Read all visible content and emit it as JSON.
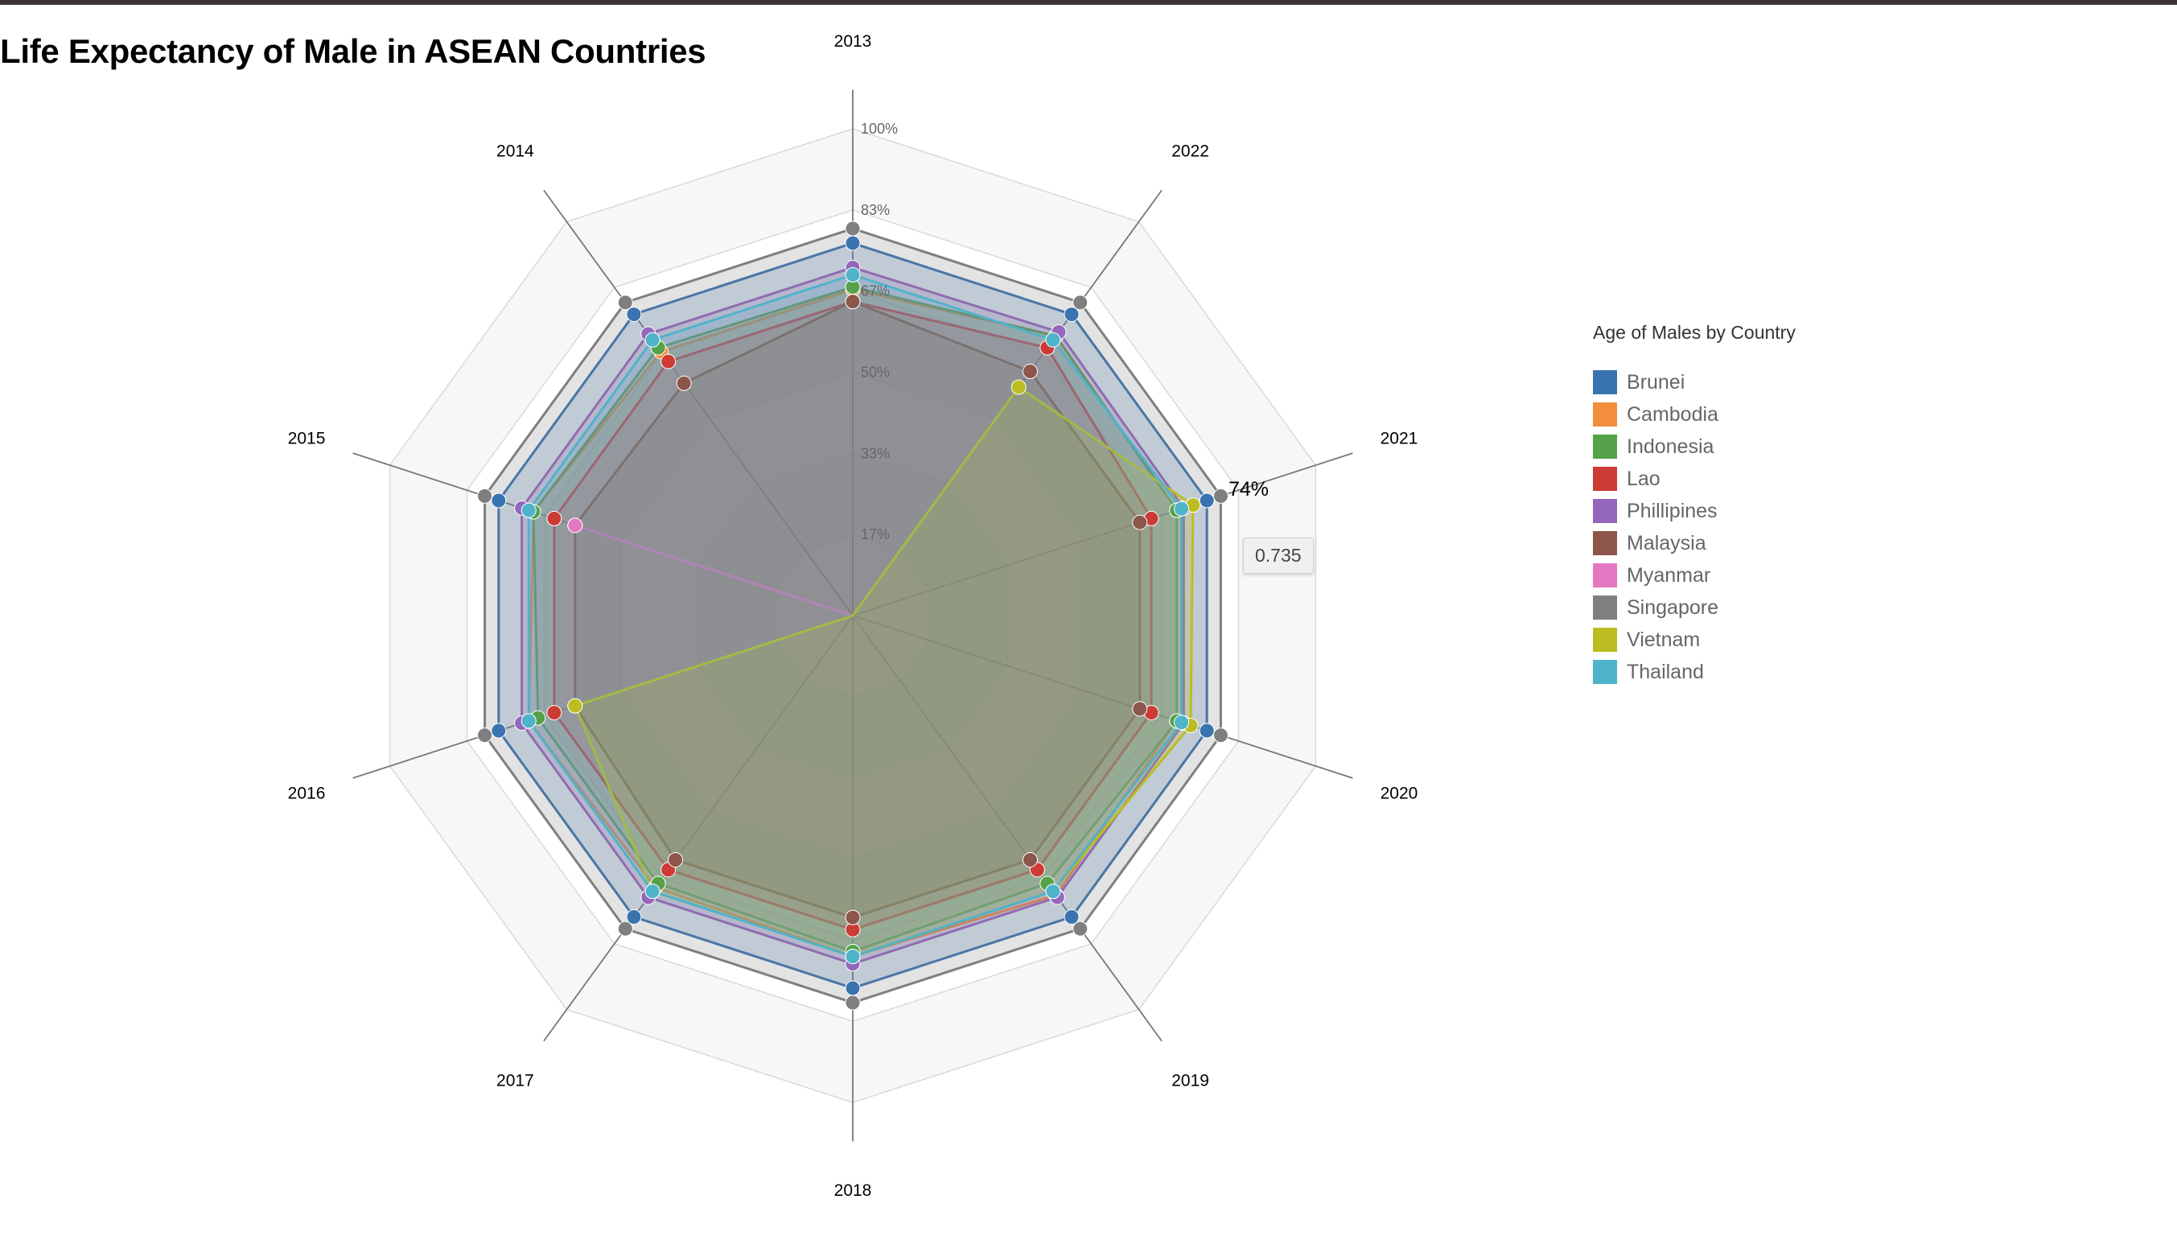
{
  "page": {
    "title": "Life Expectancy of Male in ASEAN Countries"
  },
  "chart_data": {
    "type": "radar",
    "title": "Life Expectancy of Male in ASEAN Countries",
    "axes": [
      "2013",
      "2022",
      "2021",
      "2020",
      "2019",
      "2018",
      "2017",
      "2016",
      "2015",
      "2014"
    ],
    "radial_ticks": [
      "17%",
      "33%",
      "50%",
      "67%",
      "83%",
      "100%"
    ],
    "radial_tick_values": [
      0.1667,
      0.3333,
      0.5,
      0.6667,
      0.8333,
      1.0
    ],
    "rmax": 1.0,
    "legend_title": "Age of Males by Country",
    "legend_position": "right",
    "series": [
      {
        "name": "Brunei",
        "color": "#3a74b0",
        "values": [
          0.765,
          0.765,
          0.765,
          0.765,
          0.765,
          0.765,
          0.765,
          0.765,
          0.765,
          0.765
        ]
      },
      {
        "name": "Cambodia",
        "color": "#f28e3c",
        "values": [
          0.67,
          0.71,
          0.7,
          0.7,
          0.71,
          0.7,
          0.69,
          0.7,
          0.69,
          0.67
        ]
      },
      {
        "name": "Indonesia",
        "color": "#55a24a",
        "values": [
          0.675,
          0.71,
          0.7,
          0.7,
          0.68,
          0.69,
          0.68,
          0.68,
          0.69,
          0.68
        ]
      },
      {
        "name": "Lao",
        "color": "#cc3b35",
        "values": [
          0.645,
          0.68,
          0.645,
          0.645,
          0.645,
          0.645,
          0.645,
          0.645,
          0.645,
          0.645
        ]
      },
      {
        "name": "Phillipines",
        "color": "#9467bd",
        "values": [
          0.715,
          0.72,
          0.715,
          0.715,
          0.715,
          0.715,
          0.715,
          0.715,
          0.715,
          0.715
        ]
      },
      {
        "name": "Malaysia",
        "color": "#8c564b",
        "values": [
          0.645,
          0.62,
          0.62,
          0.62,
          0.62,
          0.62,
          0.62,
          0.6,
          0.6,
          0.59
        ]
      },
      {
        "name": "Myanmar",
        "color": "#e377c2",
        "values": [
          0,
          0,
          0,
          0,
          0,
          0,
          0,
          0,
          0.6,
          0
        ]
      },
      {
        "name": "Singapore",
        "color": "#7f7f7f",
        "values": [
          0.795,
          0.795,
          0.795,
          0.795,
          0.795,
          0.795,
          0.795,
          0.795,
          0.795,
          0.795
        ]
      },
      {
        "name": "Vietnam",
        "color": "#bcbd22",
        "values": [
          0,
          0.58,
          0.735,
          0.73,
          0.7,
          0.7,
          0.7,
          0.6,
          0,
          0
        ]
      },
      {
        "name": "Thailand",
        "color": "#4fb3c9",
        "values": [
          0.7,
          0.7,
          0.71,
          0.71,
          0.7,
          0.7,
          0.7,
          0.7,
          0.7,
          0.7
        ]
      }
    ],
    "hover": {
      "series": "Vietnam",
      "axis": "2021",
      "value_label": "74%",
      "tooltip": "0.735"
    }
  }
}
